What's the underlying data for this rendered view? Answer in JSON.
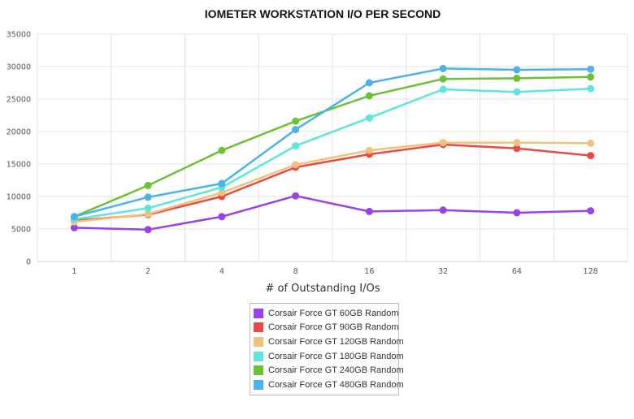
{
  "chart_data": {
    "type": "line",
    "title": "IOMETER WORKSTATION I/O PER SECOND",
    "xlabel": "# of Outstanding I/Os",
    "ylabel": "",
    "categories": [
      "1",
      "2",
      "4",
      "8",
      "16",
      "32",
      "64",
      "128"
    ],
    "ylim": [
      0,
      35000
    ],
    "yticks": [
      0,
      5000,
      10000,
      15000,
      20000,
      25000,
      30000,
      35000
    ],
    "grid": true,
    "legend_position": "bottom",
    "series": [
      {
        "name": "Corsair Force GT 60GB Random",
        "color": "#9b41e8",
        "values": [
          5200,
          4900,
          6900,
          10100,
          7700,
          7900,
          7500,
          7800
        ]
      },
      {
        "name": "Corsair Force GT 90GB Random",
        "color": "#e84b44",
        "values": [
          6300,
          7200,
          10000,
          14500,
          16500,
          18000,
          17400,
          16300
        ]
      },
      {
        "name": "Corsair Force GT 120GB Random",
        "color": "#f0c27c",
        "values": [
          6100,
          7300,
          10600,
          14900,
          17100,
          18300,
          18300,
          18200
        ]
      },
      {
        "name": "Corsair Force GT 180GB Random",
        "color": "#5ee6da",
        "values": [
          6500,
          8200,
          11400,
          17800,
          22100,
          26500,
          26100,
          26600
        ]
      },
      {
        "name": "Corsair Force GT 240GB Random",
        "color": "#6cc134",
        "values": [
          6900,
          11700,
          17100,
          21600,
          25500,
          28100,
          28200,
          28400
        ]
      },
      {
        "name": "Corsair Force GT 480GB Random",
        "color": "#4cb2e8",
        "values": [
          6900,
          9900,
          12000,
          20300,
          27500,
          29700,
          29500,
          29600
        ]
      }
    ]
  }
}
